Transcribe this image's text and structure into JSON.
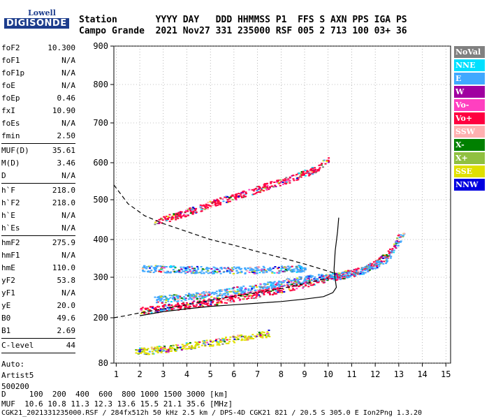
{
  "logo": {
    "line1": "Lowell",
    "line2": "DIGISONDE"
  },
  "header": {
    "row1": "Station       YYYY DAY   DDD HHMMSS P1  FFS S AXN PPS IGA PS",
    "row2": "Campo Grande  2021 Nov27 331 235000 RSF 005 2 713 100 03+ 36"
  },
  "params": [
    {
      "name": "foF2",
      "value": "10.300"
    },
    {
      "name": "foF1",
      "value": "N/A"
    },
    {
      "name": "foF1p",
      "value": "N/A"
    },
    {
      "name": "foE",
      "value": "N/A"
    },
    {
      "name": "foEp",
      "value": "0.46"
    },
    {
      "name": "fxI",
      "value": "10.90"
    },
    {
      "name": "foEs",
      "value": "N/A"
    },
    {
      "name": "fmin",
      "value": "2.50"
    },
    {
      "sep": true
    },
    {
      "name": "MUF(D)",
      "value": "35.61"
    },
    {
      "name": "M(D)",
      "value": "3.46"
    },
    {
      "name": "D",
      "value": "N/A"
    },
    {
      "sep": true
    },
    {
      "name": "h`F",
      "value": "218.0"
    },
    {
      "name": "h`F2",
      "value": "218.0"
    },
    {
      "name": "h`E",
      "value": "N/A"
    },
    {
      "name": "h`Es",
      "value": "N/A"
    },
    {
      "sep": true
    },
    {
      "name": "hmF2",
      "value": "275.9"
    },
    {
      "name": "hmF1",
      "value": "N/A"
    },
    {
      "name": "hmE",
      "value": "110.0"
    },
    {
      "name": "yF2",
      "value": "53.8"
    },
    {
      "name": "yF1",
      "value": "N/A"
    },
    {
      "name": "yE",
      "value": "20.0"
    },
    {
      "name": "B0",
      "value": "49.6"
    },
    {
      "name": "B1",
      "value": "2.69"
    },
    {
      "sep": true
    },
    {
      "name": "C-level",
      "value": "44"
    },
    {
      "sep": true
    }
  ],
  "auto": [
    "Auto:",
    "Artist5",
    "500200"
  ],
  "legend": [
    {
      "label": "NoVal",
      "color": "#808080"
    },
    {
      "label": "NNE",
      "color": "#00e0ff"
    },
    {
      "label": "E",
      "color": "#40a8ff"
    },
    {
      "label": "W",
      "color": "#a000a0"
    },
    {
      "label": "Vo-",
      "color": "#ff40c0"
    },
    {
      "label": "Vo+",
      "color": "#ff0040"
    },
    {
      "label": "SSW",
      "color": "#ffb0b0"
    },
    {
      "label": "X-",
      "color": "#008000"
    },
    {
      "label": "X+",
      "color": "#90c040"
    },
    {
      "label": "SSE",
      "color": "#e0e000"
    },
    {
      "label": "NNW",
      "color": "#0000e0"
    }
  ],
  "footer": {
    "line1": "D     100  200  400  600  800 1000 1500 3000 [km]",
    "line2": "MUF  10.6 10.8 11.3 12.3 13.6 15.5 21.1 35.6 [MHz]",
    "line3": "CGK21_2021331235000.RSF / 284fx512h 50 kHz 2.5 km / DPS-4D CGK21 821 / 20.5 S 305.0 E Ion2Png 1.3.20"
  },
  "chart_data": {
    "type": "scatter",
    "xlim": [
      0.9,
      15.2
    ],
    "ylim": [
      80,
      900
    ],
    "xticks": [
      1,
      2,
      3,
      4,
      5,
      6,
      7,
      8,
      9,
      10,
      11,
      12,
      13,
      14,
      15
    ],
    "yticks": [
      80,
      200,
      300,
      400,
      500,
      600,
      700,
      800,
      900
    ],
    "grid": "dotted",
    "traces": [
      {
        "name": "O-trace",
        "color": "#ff0040",
        "x": [
          2.0,
          3,
          4,
          5,
          6,
          7,
          8,
          9,
          10,
          10.5,
          11,
          11.5,
          12,
          12.5,
          13
        ],
        "y": [
          218,
          225,
          232,
          240,
          250,
          260,
          272,
          285,
          300,
          305,
          312,
          322,
          338,
          360,
          410
        ]
      },
      {
        "name": "X-trace",
        "color": "#40a8ff",
        "x": [
          2.6,
          3.5,
          4.5,
          5.5,
          6.5,
          7.5,
          8.5,
          9.5,
          10.5,
          11.5,
          12.5,
          13.2
        ],
        "y": [
          245,
          250,
          256,
          264,
          272,
          282,
          292,
          300,
          306,
          320,
          350,
          420
        ]
      },
      {
        "name": "oblique-upper",
        "color": "#ff0040",
        "x": [
          2.6,
          3.5,
          4.5,
          5.5,
          6.5,
          7.5,
          8.5,
          9.5,
          10
        ],
        "y": [
          445,
          460,
          480,
          500,
          520,
          540,
          560,
          585,
          610
        ]
      },
      {
        "name": "E-layer",
        "color": "#e0e000",
        "x": [
          1.8,
          2.5,
          3.5,
          4.5,
          5.5,
          6.5,
          7.5
        ],
        "y": [
          112,
          115,
          122,
          130,
          140,
          150,
          160
        ]
      },
      {
        "name": "Es-layer",
        "color": "#40a8ff",
        "x": [
          2.0,
          3.5,
          5.0,
          6.5,
          8.0,
          9.0
        ],
        "y": [
          325,
          322,
          320,
          320,
          322,
          325
        ]
      }
    ],
    "profile_curve": {
      "x": [
        2.0,
        3,
        4,
        5,
        6,
        7,
        8,
        9,
        9.8,
        10.2,
        10.35,
        10.3,
        10.25,
        10.3,
        10.4,
        10.45
      ],
      "y": [
        205,
        215,
        222,
        228,
        232,
        236,
        240,
        246,
        252,
        262,
        275,
        295,
        320,
        370,
        420,
        455
      ]
    },
    "muf_curve": {
      "x": [
        0.9,
        1.5,
        2.2,
        3.0,
        4.0,
        5.0,
        6.0,
        7.0,
        8.0,
        9.0,
        9.8,
        10.3
      ],
      "y": [
        540,
        490,
        460,
        440,
        420,
        400,
        385,
        368,
        352,
        335,
        320,
        310
      ]
    },
    "low_dashed": {
      "x": [
        0.9,
        1.4,
        2.0,
        3.0,
        4.0,
        5.0,
        6.0,
        7.0,
        8.0,
        9.0,
        10.0
      ],
      "y": [
        200,
        205,
        212,
        222,
        232,
        243,
        253,
        262,
        272,
        284,
        298
      ]
    }
  }
}
